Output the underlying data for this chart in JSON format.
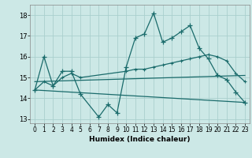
{
  "xlabel": "Humidex (Indice chaleur)",
  "xlim": [
    -0.5,
    23.5
  ],
  "ylim": [
    12.8,
    18.5
  ],
  "yticks": [
    13,
    14,
    15,
    16,
    17,
    18
  ],
  "xticks": [
    0,
    1,
    2,
    3,
    4,
    5,
    6,
    7,
    8,
    9,
    10,
    11,
    12,
    13,
    14,
    15,
    16,
    17,
    18,
    19,
    20,
    21,
    22,
    23
  ],
  "bg_color": "#cce8e6",
  "grid_color": "#aacfcd",
  "line_color": "#1a6b6b",
  "line1_x": [
    0,
    1,
    2,
    3,
    4,
    5,
    7,
    8,
    9,
    10,
    11,
    12,
    13,
    14,
    15,
    16,
    17,
    18,
    19,
    20,
    21,
    22,
    23
  ],
  "line1_y": [
    14.4,
    16.0,
    14.6,
    15.3,
    15.3,
    14.2,
    13.1,
    13.7,
    13.3,
    15.5,
    16.9,
    17.1,
    18.1,
    16.7,
    16.9,
    17.2,
    17.5,
    16.4,
    15.9,
    15.1,
    14.9,
    14.3,
    13.8
  ],
  "line2_x": [
    0,
    1,
    2,
    3,
    4,
    5,
    10,
    11,
    12,
    13,
    14,
    15,
    16,
    17,
    18,
    19,
    20,
    21,
    22,
    23
  ],
  "line2_y": [
    14.4,
    14.8,
    14.6,
    15.0,
    15.2,
    15.0,
    15.3,
    15.4,
    15.4,
    15.5,
    15.6,
    15.7,
    15.8,
    15.9,
    16.0,
    16.1,
    16.0,
    15.8,
    15.2,
    14.8
  ],
  "line3_x": [
    0,
    23
  ],
  "line3_y": [
    14.8,
    15.1
  ],
  "line4_x": [
    0,
    23
  ],
  "line4_y": [
    14.4,
    13.8
  ]
}
